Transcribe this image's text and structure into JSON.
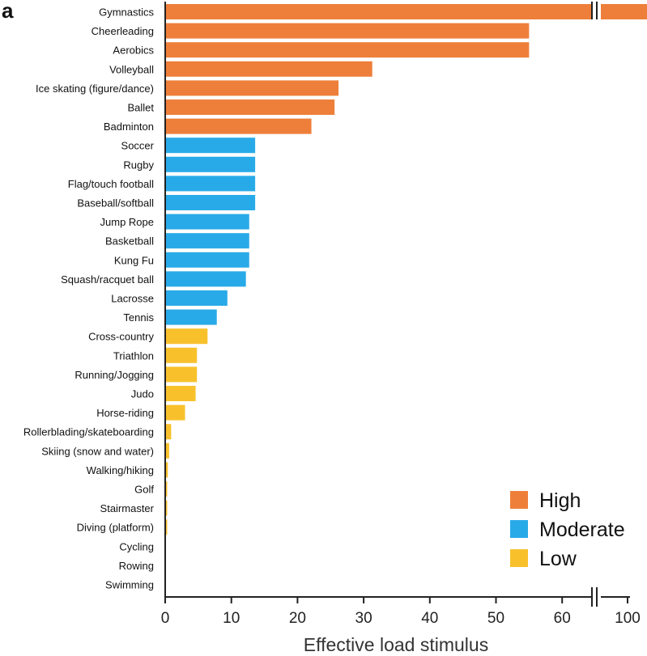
{
  "panel_label": "a",
  "chart_data": {
    "type": "bar",
    "orientation": "horizontal",
    "title": "",
    "xlabel": "Effective load stimulus",
    "ylabel": "",
    "xlim": [
      0,
      100
    ],
    "axis_break": {
      "shown_value": 100,
      "plotted_at": 70
    },
    "x_ticks": [
      0,
      10,
      20,
      30,
      40,
      50,
      60,
      100
    ],
    "x_tick_labels": [
      "0",
      "10",
      "20",
      "30",
      "40",
      "50",
      "60",
      "100"
    ],
    "grid": false,
    "legend_position": "bottom-right",
    "categories": [
      "Gymnastics",
      "Cheerleading",
      "Aerobics",
      "Volleyball",
      "Ice skating (figure/dance)",
      "Ballet",
      "Badminton",
      "Soccer",
      "Rugby",
      "Flag/touch football",
      "Baseball/softball",
      "Jump Rope",
      "Basketball",
      "Kung Fu",
      "Squash/racquet ball",
      "Lacrosse",
      "Tennis",
      "Cross-country",
      "Triathlon",
      "Running/Jogging",
      "Judo",
      "Horse-riding",
      "Rollerblading/skateboarding",
      "Skiing (snow and water)",
      "Walking/hiking",
      "Golf",
      "Stairmaster",
      "Diving (platform)",
      "Cycling",
      "Rowing",
      "Swimming"
    ],
    "values": [
      100,
      55,
      55,
      31.3,
      26.2,
      25.6,
      22.1,
      13.6,
      13.6,
      13.6,
      13.6,
      12.7,
      12.7,
      12.7,
      12.2,
      9.4,
      7.8,
      6.4,
      4.8,
      4.8,
      4.6,
      3.0,
      0.9,
      0.6,
      0.4,
      0.3,
      0.3,
      0.3,
      0,
      0,
      0
    ],
    "groups": [
      "High",
      "High",
      "High",
      "High",
      "High",
      "High",
      "High",
      "Moderate",
      "Moderate",
      "Moderate",
      "Moderate",
      "Moderate",
      "Moderate",
      "Moderate",
      "Moderate",
      "Moderate",
      "Moderate",
      "Low",
      "Low",
      "Low",
      "Low",
      "Low",
      "Low",
      "Low",
      "Low",
      "Low",
      "Low",
      "Low",
      "Low",
      "Low",
      "Low"
    ],
    "legend": [
      {
        "name": "High",
        "color": "#ee7f3a"
      },
      {
        "name": "Moderate",
        "color": "#29aae8"
      },
      {
        "name": "Low",
        "color": "#f8c12c"
      }
    ]
  }
}
